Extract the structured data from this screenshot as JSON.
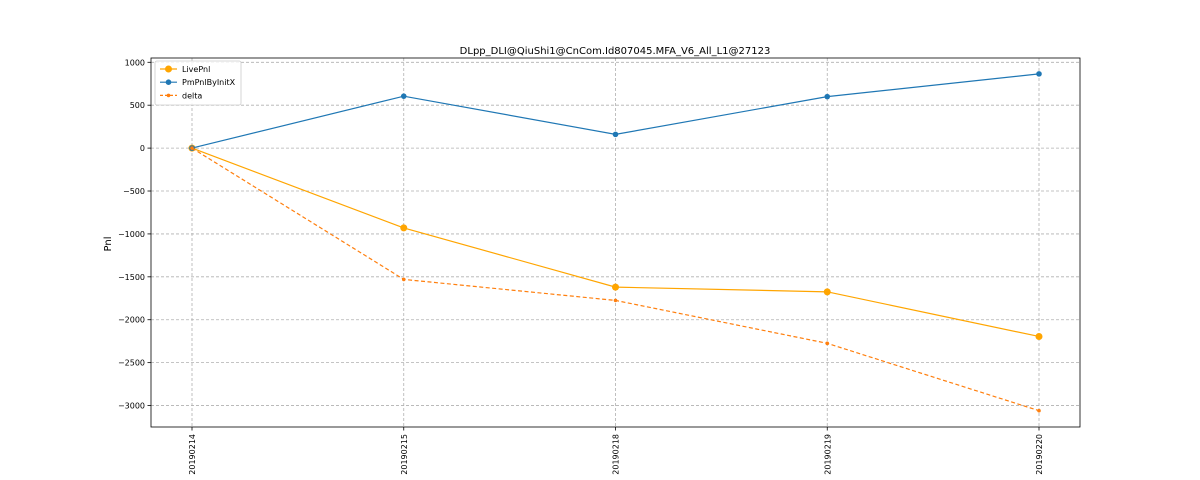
{
  "chart_data": {
    "type": "line",
    "title": "DLpp_DLI@QiuShi1@CnCom.Id807045.MFA_V6_All_L1@27123",
    "xlabel": "",
    "ylabel": "Pnl",
    "categories": [
      "20190214",
      "20190215",
      "20190218",
      "20190219",
      "20190220"
    ],
    "ylim": [
      -3250,
      1050
    ],
    "yticks": [
      1000,
      500,
      0,
      -500,
      -1000,
      -1500,
      -2000,
      -2500,
      -3000
    ],
    "grid": true,
    "legend_position": "top-left",
    "series": [
      {
        "name": "LivePnl",
        "values": [
          0,
          -930,
          -1620,
          -1675,
          -2195
        ],
        "color": "#ffa500",
        "style": "solid",
        "marker": "circle-large"
      },
      {
        "name": "PmPnlByInitX",
        "values": [
          0,
          605,
          160,
          600,
          865
        ],
        "color": "#1f77b4",
        "style": "solid",
        "marker": "circle"
      },
      {
        "name": "delta",
        "values": [
          0,
          -1530,
          -1775,
          -2275,
          -3060
        ],
        "color": "#ff7f0e",
        "style": "dashed",
        "marker": "circle-small"
      }
    ]
  }
}
